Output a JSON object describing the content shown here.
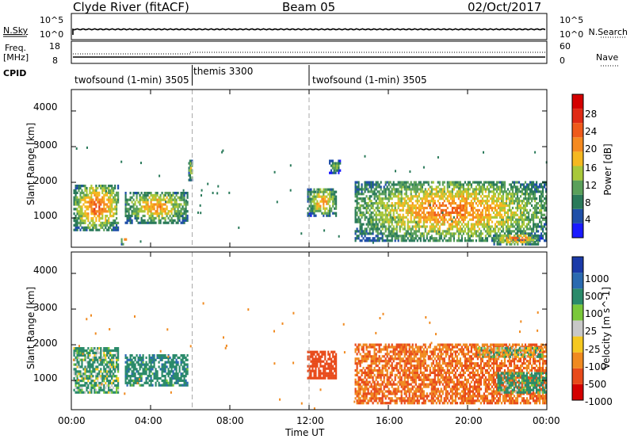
{
  "header": {
    "station": "Clyde River (fitACF)",
    "beam": "Beam 05",
    "date": "02/Oct/2017"
  },
  "top_panels": {
    "nsky_label": "N.Sky",
    "nsky_ticks": [
      "10^5",
      "10^0"
    ],
    "nsearch_label": "N.Search",
    "nsearch_ticks": [
      "10^5",
      "10^0"
    ],
    "freq_label_1": "Freq.",
    "freq_label_2": "[MHz]",
    "freq_ticks": [
      "18",
      "8"
    ],
    "nave_label": "Nave",
    "nave_ticks": [
      "60",
      "0"
    ],
    "cpid_label": "CPID",
    "cpid_segments": [
      {
        "label": "twofsound (1-min) 3505",
        "start_hour": 0,
        "end_hour": 6.1
      },
      {
        "label": "themis 3300",
        "start_hour": 6.1,
        "end_hour": 12.0
      },
      {
        "label": "twofsound (1-min) 3505",
        "start_hour": 12.0,
        "end_hour": 24
      }
    ]
  },
  "chart_data": [
    {
      "type": "heatmap",
      "title": "",
      "xlabel": "Time UT",
      "ylabel": "Slant Range [km]",
      "xlim": [
        0,
        24
      ],
      "ylim": [
        180,
        4600
      ],
      "x_ticks": [
        "00:00",
        "04:00",
        "08:00",
        "12:00",
        "16:00",
        "20:00",
        "00:00"
      ],
      "y_ticks": [
        1000,
        2000,
        3000,
        4000
      ],
      "colorbar": {
        "label": "Power [dB]",
        "range": [
          0,
          32
        ],
        "ticks": [
          4,
          8,
          12,
          16,
          20,
          24,
          28
        ],
        "colors": [
          "#1a1aff",
          "#1f4fa8",
          "#2a7a5a",
          "#5aa05a",
          "#a8c83a",
          "#f5b820",
          "#f58a20",
          "#ef5a1a",
          "#e02a14",
          "#d40000"
        ]
      },
      "echo_regions": [
        {
          "t0": 0.1,
          "t1": 2.4,
          "r0": 700,
          "r1": 2000,
          "peak_db": 26
        },
        {
          "t0": 2.5,
          "t1": 2.8,
          "r0": 300,
          "r1": 500,
          "peak_db": 30
        },
        {
          "t0": 2.7,
          "t1": 5.9,
          "r0": 900,
          "r1": 1800,
          "peak_db": 22
        },
        {
          "t0": 5.9,
          "t1": 6.1,
          "r0": 2100,
          "r1": 2700,
          "peak_db": 18
        },
        {
          "t0": 11.9,
          "t1": 13.4,
          "r0": 1100,
          "r1": 1900,
          "peak_db": 22
        },
        {
          "t0": 13.0,
          "t1": 13.6,
          "r0": 2300,
          "r1": 2700,
          "peak_db": 14
        },
        {
          "t0": 14.3,
          "t1": 24,
          "r0": 400,
          "r1": 2100,
          "peak_db": 24
        },
        {
          "t0": 21.3,
          "t1": 23.6,
          "r0": 300,
          "r1": 600,
          "peak_db": 26
        }
      ]
    },
    {
      "type": "heatmap",
      "title": "",
      "xlabel": "Time UT",
      "ylabel": "Slant Range [km]",
      "xlim": [
        0,
        24
      ],
      "ylim": [
        180,
        4600
      ],
      "x_ticks": [
        "00:00",
        "04:00",
        "08:00",
        "12:00",
        "16:00",
        "20:00",
        "00:00"
      ],
      "y_ticks": [
        1000,
        2000,
        3000,
        4000
      ],
      "colorbar": {
        "label": "Velocity [m s^-1]",
        "tick_labels": [
          "1000",
          "500",
          "100",
          "25",
          "-25",
          "-100",
          "-500",
          "-1000"
        ],
        "colors": [
          "#1a3aa8",
          "#2a6ab0",
          "#2a8a6a",
          "#7ac83a",
          "#c8c8c8",
          "#f5c820",
          "#f08a20",
          "#e84a1a",
          "#d40000"
        ]
      },
      "echo_regions": [
        {
          "t0": 0.1,
          "t1": 2.4,
          "r0": 700,
          "r1": 2000,
          "velocity": 100
        },
        {
          "t0": 2.7,
          "t1": 5.9,
          "r0": 900,
          "r1": 1800,
          "velocity": 200
        },
        {
          "t0": 11.9,
          "t1": 13.4,
          "r0": 1100,
          "r1": 1900,
          "velocity": -500
        },
        {
          "t0": 14.3,
          "t1": 24,
          "r0": 400,
          "r1": 2100,
          "velocity": -300
        },
        {
          "t0": 20.5,
          "t1": 23.8,
          "r0": 1700,
          "r1": 2000,
          "velocity": 0
        },
        {
          "t0": 21.5,
          "t1": 24,
          "r0": 700,
          "r1": 1300,
          "velocity": 150
        }
      ]
    }
  ]
}
